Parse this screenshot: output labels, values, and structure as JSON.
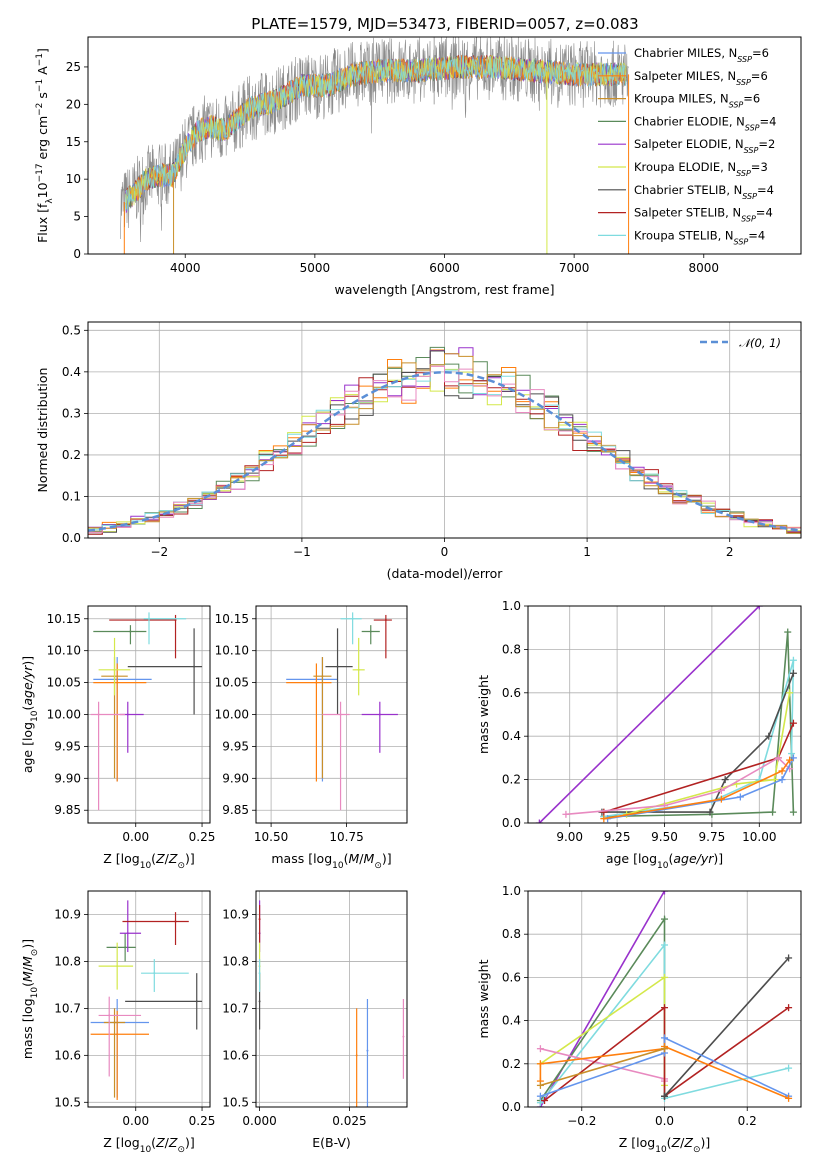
{
  "figure_title": "PLATE=1579, MJD=53473, FIBERID=0057, z=0.083",
  "colors": {
    "Chabrier MILES": "#6495ed",
    "Salpeter MILES": "#ff7f0e",
    "Kroupa MILES": "#c98f2a",
    "Chabrier ELODIE": "#5a8a5a",
    "Salpeter ELODIE": "#9932cc",
    "Kroupa ELODIE": "#d4e84a",
    "Chabrier STELIB": "#4d4d4d",
    "Salpeter STELIB": "#b22222",
    "Kroupa STELIB": "#7fdbdf",
    "Pink": "#e88ac0",
    "Grey": "#808080",
    "Normal": "#5b8fd6"
  },
  "chart_data": [
    {
      "id": "spectrum",
      "type": "line",
      "title": "PLATE=1579, MJD=53473, FIBERID=0057, z=0.083",
      "xlabel": "wavelength [Angstrom, rest frame]",
      "ylabel": "Flux [f_λ 10^-17 erg cm^-2 s^-1 A^-1]",
      "ylabel_main": "Flux [f",
      "ylabel_sub": "λ",
      "ylabel_rest1": "10",
      "ylabel_sup1": "−17",
      "ylabel_rest2": " erg cm",
      "ylabel_sup2": "−2",
      "ylabel_rest3": " s",
      "ylabel_sup3": "−1",
      "ylabel_rest4": " A",
      "ylabel_sup4": "−1",
      "ylabel_end": "]",
      "xlim": [
        3250,
        8750
      ],
      "ylim": [
        0,
        29
      ],
      "xticks": [
        4000,
        5000,
        6000,
        7000,
        8000
      ],
      "yticks": [
        0,
        5,
        10,
        15,
        20,
        25
      ],
      "continuum": {
        "x": [
          3500,
          3600,
          3700,
          3800,
          3900,
          4000,
          4100,
          4200,
          4300,
          4400,
          4500,
          4700,
          4900,
          5100,
          5300,
          5500,
          5800,
          6100,
          6400,
          6700,
          7000,
          7300,
          7420
        ],
        "y": [
          6.5,
          8,
          10,
          10.5,
          10.5,
          14,
          16.5,
          17,
          16.5,
          18,
          19.5,
          20.5,
          22.5,
          22.5,
          24,
          24.5,
          24.5,
          25,
          25,
          24.5,
          24,
          24,
          24
        ]
      },
      "legend": [
        {
          "label": "Chabrier MILES",
          "nssp": "6",
          "color_key": "Chabrier MILES"
        },
        {
          "label": "Salpeter MILES",
          "nssp": "6",
          "color_key": "Salpeter MILES"
        },
        {
          "label": "Kroupa MILES",
          "nssp": "6",
          "color_key": "Kroupa MILES"
        },
        {
          "label": "Chabrier ELODIE",
          "nssp": "4",
          "color_key": "Chabrier ELODIE"
        },
        {
          "label": "Salpeter ELODIE",
          "nssp": "2",
          "color_key": "Salpeter ELODIE"
        },
        {
          "label": "Kroupa ELODIE",
          "nssp": "3",
          "color_key": "Kroupa ELODIE"
        },
        {
          "label": "Chabrier STELIB",
          "nssp": "4",
          "color_key": "Chabrier STELIB"
        },
        {
          "label": "Salpeter STELIB",
          "nssp": "4",
          "color_key": "Salpeter STELIB"
        },
        {
          "label": "Kroupa STELIB",
          "nssp": "4",
          "color_key": "Kroupa STELIB"
        }
      ],
      "legend_prefix": "N",
      "legend_sub": "SSP",
      "legend_placement": "right"
    },
    {
      "id": "residuals",
      "type": "line",
      "xlabel": "(data-model)/error",
      "ylabel": "Normed distribution",
      "xlim": [
        -2.5,
        2.5
      ],
      "ylim": [
        0,
        0.52
      ],
      "xticks": [
        -2,
        -1,
        0,
        1,
        2
      ],
      "yticks": [
        0.0,
        0.1,
        0.2,
        0.3,
        0.4,
        0.5
      ],
      "grid": true,
      "normal_curve": {
        "mean": 0,
        "sigma": 1
      },
      "legend": [
        {
          "label": "𝒩(0, 1)",
          "style": "dashed"
        }
      ],
      "legend_placement": "top-right"
    },
    {
      "id": "age_vs_Z",
      "type": "scatter",
      "xlabel": "Z [log10(Z/Z⊙)]",
      "ylabel": "age  [log10(age/yr)]",
      "xlim": [
        -0.18,
        0.28
      ],
      "ylim": [
        9.83,
        10.17
      ],
      "xticks": [
        0.0,
        0.25
      ],
      "yticks": [
        9.85,
        9.9,
        9.95,
        10.0,
        10.05,
        10.1,
        10.15
      ],
      "grid": true,
      "points": [
        {
          "c": "Chabrier MILES",
          "x": -0.07,
          "xerr": [
            0.09,
            0.13
          ],
          "y": 10.055,
          "yerr": [
            0.16,
            0.035
          ]
        },
        {
          "c": "Salpeter MILES",
          "x": -0.07,
          "xerr": [
            0.09,
            0.11
          ],
          "y": 10.05,
          "yerr": [
            0.155,
            0.03
          ]
        },
        {
          "c": "Kroupa MILES",
          "x": -0.08,
          "xerr": [
            0.05,
            0.05
          ],
          "y": 10.06,
          "yerr": [
            0.16,
            0.03
          ]
        },
        {
          "c": "Chabrier ELODIE",
          "x": -0.02,
          "xerr": [
            0.14,
            0.06
          ],
          "y": 10.13,
          "yerr": [
            0.02,
            0.01
          ]
        },
        {
          "c": "Salpeter ELODIE",
          "x": -0.03,
          "xerr": [
            0.03,
            0.06
          ],
          "y": 10.0,
          "yerr": [
            0.06,
            0.02
          ]
        },
        {
          "c": "Kroupa ELODIE",
          "x": -0.08,
          "xerr": [
            0.06,
            0.06
          ],
          "y": 10.07,
          "yerr": [
            0.04,
            0.05
          ]
        },
        {
          "c": "Chabrier STELIB",
          "x": 0.22,
          "xerr": [
            0.25,
            0.03
          ],
          "y": 10.075,
          "yerr": [
            0.075,
            0.06
          ]
        },
        {
          "c": "Salpeter STELIB",
          "x": 0.15,
          "xerr": [
            0.25,
            0.0
          ],
          "y": 10.148,
          "yerr": [
            0.06,
            0.008
          ]
        },
        {
          "c": "Kroupa STELIB",
          "x": 0.05,
          "xerr": [
            0.02,
            0.14
          ],
          "y": 10.15,
          "yerr": [
            0.04,
            0.01
          ]
        },
        {
          "c": "Pink",
          "x": -0.14,
          "xerr": [
            0.03,
            0.1
          ],
          "y": 10.0,
          "yerr": [
            0.15,
            0.02
          ]
        }
      ]
    },
    {
      "id": "age_vs_mass",
      "type": "scatter",
      "xlabel": "mass [log10(M/M⊙)]",
      "xlim": [
        10.45,
        10.95
      ],
      "ylim": [
        9.83,
        10.17
      ],
      "xticks": [
        10.5,
        10.75
      ],
      "yticks": [
        9.85,
        9.9,
        9.95,
        10.0,
        10.05,
        10.1,
        10.15
      ],
      "grid": true,
      "points": [
        {
          "c": "Chabrier MILES",
          "x": 10.67,
          "xerr": [
            0.12,
            0.05
          ],
          "y": 10.055,
          "yerr": [
            0.16,
            0.035
          ]
        },
        {
          "c": "Salpeter MILES",
          "x": 10.65,
          "xerr": [
            0.1,
            0.05
          ],
          "y": 10.05,
          "yerr": [
            0.155,
            0.03
          ]
        },
        {
          "c": "Kroupa MILES",
          "x": 10.67,
          "xerr": [
            0.03,
            0.03
          ],
          "y": 10.06,
          "yerr": [
            0.16,
            0.03
          ]
        },
        {
          "c": "Chabrier ELODIE",
          "x": 10.83,
          "xerr": [
            0.03,
            0.03
          ],
          "y": 10.13,
          "yerr": [
            0.02,
            0.01
          ]
        },
        {
          "c": "Salpeter ELODIE",
          "x": 10.86,
          "xerr": [
            0.06,
            0.06
          ],
          "y": 10.0,
          "yerr": [
            0.06,
            0.02
          ]
        },
        {
          "c": "Kroupa ELODIE",
          "x": 10.79,
          "xerr": [
            0.02,
            0.02
          ],
          "y": 10.07,
          "yerr": [
            0.04,
            0.05
          ]
        },
        {
          "c": "Chabrier STELIB",
          "x": 10.72,
          "xerr": [
            0.04,
            0.05
          ],
          "y": 10.075,
          "yerr": [
            0.075,
            0.06
          ]
        },
        {
          "c": "Salpeter STELIB",
          "x": 10.88,
          "xerr": [
            0.04,
            0.02
          ],
          "y": 10.148,
          "yerr": [
            0.06,
            0.008
          ]
        },
        {
          "c": "Kroupa STELIB",
          "x": 10.77,
          "xerr": [
            0.04,
            0.03
          ],
          "y": 10.15,
          "yerr": [
            0.04,
            0.01
          ]
        },
        {
          "c": "Pink",
          "x": 10.73,
          "xerr": [
            0.06,
            0.03
          ],
          "y": 10.0,
          "yerr": [
            0.15,
            0.02
          ]
        }
      ]
    },
    {
      "id": "weight_vs_age",
      "type": "line",
      "xlabel": "age  [log10(age/yr)]",
      "ylabel": "mass weight",
      "xlim": [
        8.78,
        10.22
      ],
      "ylim": [
        0,
        1
      ],
      "xticks": [
        9.0,
        9.25,
        9.5,
        9.75,
        10.0
      ],
      "yticks": [
        0.0,
        0.2,
        0.4,
        0.6,
        0.8,
        1.0
      ],
      "grid": true,
      "series": [
        {
          "c": "Salpeter ELODIE",
          "x": [
            8.84,
            10.0
          ],
          "y": [
            0.0,
            1.0
          ]
        },
        {
          "c": "Chabrier ELODIE",
          "x": [
            9.18,
            9.75,
            10.07,
            10.15,
            10.18
          ],
          "y": [
            0.03,
            0.04,
            0.05,
            0.88,
            0.05
          ]
        },
        {
          "c": "Kroupa STELIB",
          "x": [
            9.18,
            9.75,
            10.0,
            10.18,
            10.17
          ],
          "y": [
            0.03,
            0.1,
            0.2,
            0.75,
            0.32
          ]
        },
        {
          "c": "Chabrier STELIB",
          "x": [
            9.17,
            9.74,
            9.82,
            10.05,
            10.18
          ],
          "y": [
            0.05,
            0.05,
            0.2,
            0.4,
            0.69
          ]
        },
        {
          "c": "Salpeter STELIB",
          "x": [
            9.18,
            10.1,
            10.18
          ],
          "y": [
            0.05,
            0.3,
            0.46
          ]
        },
        {
          "c": "Kroupa ELODIE",
          "x": [
            9.3,
            9.88,
            10.08,
            10.16
          ],
          "y": [
            0.04,
            0.18,
            0.2,
            0.6
          ]
        },
        {
          "c": "Pink",
          "x": [
            8.98,
            9.5,
            9.8,
            10.1,
            10.16
          ],
          "y": [
            0.04,
            0.08,
            0.15,
            0.3,
            0.25
          ]
        },
        {
          "c": "Chabrier MILES",
          "x": [
            9.2,
            9.9,
            10.12,
            10.18
          ],
          "y": [
            0.02,
            0.12,
            0.2,
            0.3
          ]
        },
        {
          "c": "Salpeter MILES",
          "x": [
            9.18,
            9.8,
            10.12,
            10.16
          ],
          "y": [
            0.02,
            0.11,
            0.24,
            0.29
          ]
        }
      ]
    },
    {
      "id": "mass_vs_Z",
      "type": "scatter",
      "xlabel": "Z [log10(Z/Z⊙)]",
      "ylabel": "mass [log10(M/M⊙)]",
      "xlim": [
        -0.18,
        0.28
      ],
      "ylim": [
        10.49,
        10.95
      ],
      "xticks": [
        0.0,
        0.25
      ],
      "yticks": [
        10.5,
        10.6,
        10.7,
        10.8,
        10.9
      ],
      "grid": true,
      "points": [
        {
          "c": "Chabrier MILES",
          "x": -0.07,
          "xerr": [
            0.1,
            0.12
          ],
          "y": 10.67,
          "yerr": [
            0.16,
            0.05
          ]
        },
        {
          "c": "Salpeter MILES",
          "x": -0.07,
          "xerr": [
            0.1,
            0.12
          ],
          "y": 10.645,
          "yerr": [
            0.14,
            0.05
          ]
        },
        {
          "c": "Kroupa MILES",
          "x": -0.08,
          "xerr": [
            0.04,
            0.04
          ],
          "y": 10.67,
          "yerr": [
            0.16,
            0.03
          ]
        },
        {
          "c": "Chabrier ELODIE",
          "x": -0.04,
          "xerr": [
            0.07,
            0.04
          ],
          "y": 10.83,
          "yerr": [
            0.03,
            0.03
          ]
        },
        {
          "c": "Salpeter ELODIE",
          "x": -0.03,
          "xerr": [
            0.03,
            0.05
          ],
          "y": 10.86,
          "yerr": [
            0.04,
            0.07
          ]
        },
        {
          "c": "Kroupa ELODIE",
          "x": -0.07,
          "xerr": [
            0.07,
            0.06
          ],
          "y": 10.79,
          "yerr": [
            0.05,
            0.05
          ]
        },
        {
          "c": "Chabrier STELIB",
          "x": 0.23,
          "xerr": [
            0.27,
            0.02
          ],
          "y": 10.715,
          "yerr": [
            0.06,
            0.06
          ]
        },
        {
          "c": "Salpeter STELIB",
          "x": 0.15,
          "xerr": [
            0.2,
            0.05
          ],
          "y": 10.885,
          "yerr": [
            0.05,
            0.02
          ]
        },
        {
          "c": "Kroupa STELIB",
          "x": 0.07,
          "xerr": [
            0.05,
            0.13
          ],
          "y": 10.775,
          "yerr": [
            0.04,
            0.03
          ]
        },
        {
          "c": "Pink",
          "x": -0.1,
          "xerr": [
            0.04,
            0.12
          ],
          "y": 10.685,
          "yerr": [
            0.13,
            0.04
          ]
        }
      ]
    },
    {
      "id": "mass_vs_ebv",
      "type": "scatter",
      "xlabel": "E(B-V)",
      "xlim": [
        -0.001,
        0.041
      ],
      "ylim": [
        10.49,
        10.95
      ],
      "xticks": [
        0.0,
        0.025
      ],
      "yticks": [
        10.5,
        10.6,
        10.7,
        10.8,
        10.9
      ],
      "grid": true,
      "points": [
        {
          "c": "Chabrier MILES",
          "x": 0.03,
          "y": 10.61,
          "yerr": [
            0.12,
            0.11
          ]
        },
        {
          "c": "Salpeter MILES",
          "x": 0.027,
          "y": 10.6,
          "yerr": [
            0.11,
            0.1
          ]
        },
        {
          "c": "Pink",
          "x": 0.04,
          "y": 10.64,
          "yerr": [
            0.09,
            0.08
          ]
        },
        {
          "c": "Salpeter ELODIE",
          "x": 0.0,
          "y": 10.86,
          "yerr": [
            0.04,
            0.07
          ]
        },
        {
          "c": "Salpeter STELIB",
          "x": 0.0,
          "y": 10.89,
          "yerr": [
            0.05,
            0.03
          ]
        },
        {
          "c": "Kroupa ELODIE",
          "x": 0.0,
          "y": 10.79,
          "yerr": [
            0.05,
            0.05
          ]
        },
        {
          "c": "Chabrier STELIB",
          "x": 0.0,
          "y": 10.715,
          "yerr": [
            0.06,
            0.06
          ]
        },
        {
          "c": "Kroupa STELIB",
          "x": 0.0,
          "y": 10.775,
          "yerr": [
            0.04,
            0.03
          ]
        }
      ]
    },
    {
      "id": "weight_vs_Z",
      "type": "line",
      "xlabel": "Z [log10(Z/Z⊙)]",
      "ylabel": "mass weight",
      "xlim": [
        -0.33,
        0.33
      ],
      "ylim": [
        0,
        1
      ],
      "xticks": [
        -0.2,
        0.0,
        0.2
      ],
      "yticks": [
        0.0,
        0.2,
        0.4,
        0.6,
        0.8,
        1.0
      ],
      "grid": true,
      "series": [
        {
          "c": "Salpeter ELODIE",
          "x": [
            -0.3,
            0.0
          ],
          "y": [
            0.0,
            1.0
          ]
        },
        {
          "c": "Chabrier ELODIE",
          "x": [
            -0.3,
            0.0,
            0.0
          ],
          "y": [
            0.03,
            0.87,
            0.05
          ]
        },
        {
          "c": "Kroupa STELIB",
          "x": [
            -0.3,
            0.0,
            0.0,
            0.3
          ],
          "y": [
            0.02,
            0.75,
            0.04,
            0.18
          ]
        },
        {
          "c": "Kroupa ELODIE",
          "x": [
            -0.3,
            0.0,
            0.0
          ],
          "y": [
            0.2,
            0.6,
            0.1
          ]
        },
        {
          "c": "Pink",
          "x": [
            -0.3,
            0.0,
            0.0
          ],
          "y": [
            0.27,
            0.13,
            0.12
          ]
        },
        {
          "c": "Salpeter STELIB",
          "x": [
            -0.29,
            0.0,
            0.0,
            0.3
          ],
          "y": [
            0.03,
            0.46,
            0.05,
            0.46
          ]
        },
        {
          "c": "Chabrier STELIB",
          "x": [
            0.0,
            0.0,
            0.3
          ],
          "y": [
            0.05,
            0.05,
            0.69
          ]
        },
        {
          "c": "Chabrier MILES",
          "x": [
            -0.3,
            0.0,
            0.0,
            0.3
          ],
          "y": [
            0.05,
            0.25,
            0.32,
            0.05
          ]
        },
        {
          "c": "Salpeter MILES",
          "x": [
            -0.3,
            -0.3,
            0.0,
            0.0,
            0.3
          ],
          "y": [
            0.12,
            0.2,
            0.27,
            0.28,
            0.04
          ]
        },
        {
          "c": "Kroupa MILES",
          "x": [
            -0.3,
            0.0
          ],
          "y": [
            0.1,
            0.27
          ]
        }
      ]
    }
  ]
}
